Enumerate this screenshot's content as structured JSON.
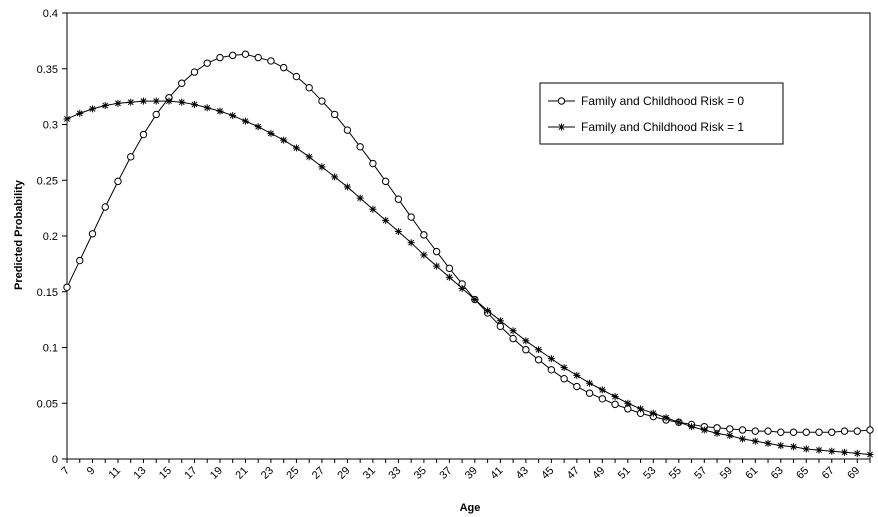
{
  "chart_data": {
    "type": "line",
    "xlabel": "Age",
    "ylabel": "Predicted Probability",
    "xlim": [
      7,
      70
    ],
    "ylim": [
      0,
      0.4
    ],
    "y_ticks": [
      "0",
      "0.05",
      "0.1",
      "0.15",
      "0.2",
      "0.25",
      "0.3",
      "0.35",
      "0.4"
    ],
    "x_tick_labels": [
      "7",
      "9",
      "11",
      "13",
      "15",
      "17",
      "19",
      "21",
      "23",
      "25",
      "27",
      "29",
      "31",
      "33",
      "35",
      "37",
      "39",
      "41",
      "43",
      "45",
      "47",
      "49",
      "51",
      "53",
      "55",
      "57",
      "59",
      "61",
      "63",
      "65",
      "67",
      "69"
    ],
    "grid": false,
    "legend_position": "right",
    "series": [
      {
        "name": "Family and Childhood Risk = 0",
        "marker": "circle",
        "x": [
          7,
          8,
          9,
          10,
          11,
          12,
          13,
          14,
          15,
          16,
          17,
          18,
          19,
          20,
          21,
          22,
          23,
          24,
          25,
          26,
          27,
          28,
          29,
          30,
          31,
          32,
          33,
          34,
          35,
          36,
          37,
          38,
          39,
          40,
          41,
          42,
          43,
          44,
          45,
          46,
          47,
          48,
          49,
          50,
          51,
          52,
          53,
          54,
          55,
          56,
          57,
          58,
          59,
          60,
          61,
          62,
          63,
          64,
          65,
          66,
          67,
          68,
          69,
          70
        ],
        "values": [
          0.154,
          0.178,
          0.202,
          0.226,
          0.249,
          0.271,
          0.291,
          0.309,
          0.324,
          0.337,
          0.347,
          0.355,
          0.36,
          0.362,
          0.363,
          0.36,
          0.357,
          0.351,
          0.343,
          0.333,
          0.321,
          0.309,
          0.295,
          0.28,
          0.265,
          0.249,
          0.233,
          0.217,
          0.201,
          0.186,
          0.171,
          0.157,
          0.143,
          0.131,
          0.119,
          0.108,
          0.098,
          0.089,
          0.08,
          0.072,
          0.065,
          0.059,
          0.054,
          0.049,
          0.045,
          0.041,
          0.038,
          0.035,
          0.033,
          0.031,
          0.029,
          0.028,
          0.027,
          0.026,
          0.025,
          0.025,
          0.024,
          0.024,
          0.024,
          0.024,
          0.024,
          0.025,
          0.025,
          0.026
        ]
      },
      {
        "name": "Family and Childhood Risk = 1",
        "marker": "star",
        "x": [
          7,
          8,
          9,
          10,
          11,
          12,
          13,
          14,
          15,
          16,
          17,
          18,
          19,
          20,
          21,
          22,
          23,
          24,
          25,
          26,
          27,
          28,
          29,
          30,
          31,
          32,
          33,
          34,
          35,
          36,
          37,
          38,
          39,
          40,
          41,
          42,
          43,
          44,
          45,
          46,
          47,
          48,
          49,
          50,
          51,
          52,
          53,
          54,
          55,
          56,
          57,
          58,
          59,
          60,
          61,
          62,
          63,
          64,
          65,
          66,
          67,
          68,
          69,
          70
        ],
        "values": [
          0.305,
          0.31,
          0.314,
          0.317,
          0.319,
          0.32,
          0.321,
          0.321,
          0.321,
          0.32,
          0.318,
          0.315,
          0.312,
          0.308,
          0.303,
          0.298,
          0.292,
          0.286,
          0.279,
          0.271,
          0.262,
          0.253,
          0.244,
          0.234,
          0.224,
          0.214,
          0.204,
          0.194,
          0.183,
          0.173,
          0.163,
          0.153,
          0.143,
          0.133,
          0.124,
          0.115,
          0.106,
          0.098,
          0.09,
          0.082,
          0.075,
          0.068,
          0.062,
          0.056,
          0.05,
          0.045,
          0.041,
          0.037,
          0.033,
          0.029,
          0.026,
          0.023,
          0.021,
          0.018,
          0.016,
          0.014,
          0.012,
          0.011,
          0.009,
          0.008,
          0.007,
          0.006,
          0.005,
          0.004
        ]
      }
    ]
  }
}
